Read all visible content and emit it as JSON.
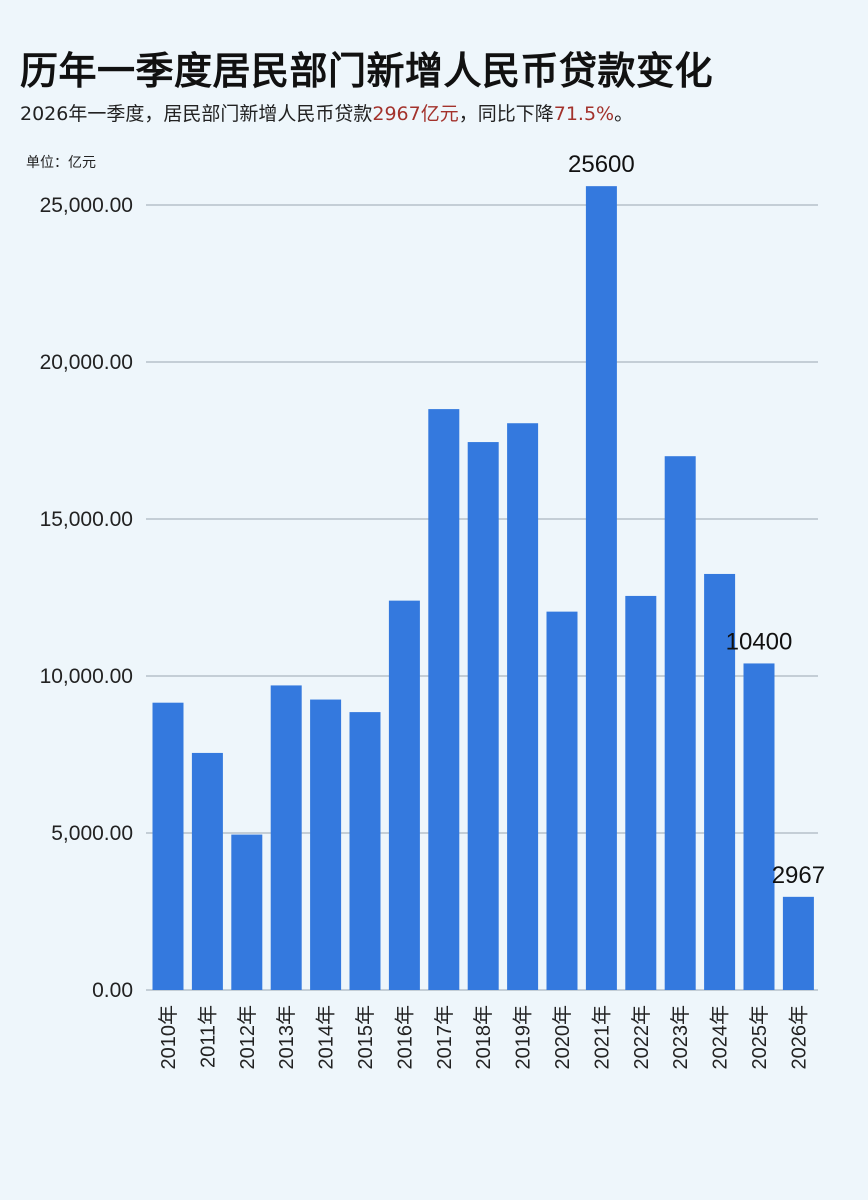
{
  "title": "历年一季度居民部门新增人民币贷款变化",
  "subtitle": {
    "part1": "2026年一季度，居民部门新增人民币贷款",
    "highlight1": "2967亿元",
    "part2": "，同比下降",
    "highlight2": "71.5%",
    "part3": "。"
  },
  "unit_label": "单位：亿元",
  "colors": {
    "bar": "#3479de",
    "grid": "#9aa6b0",
    "highlight": "#a3322c",
    "background": "#eef6fb"
  },
  "chart_data": {
    "type": "bar",
    "title": "历年一季度居民部门新增人民币贷款变化",
    "ylabel": "单位：亿元",
    "xlabel": "",
    "ylim": [
      0,
      25000
    ],
    "grid": true,
    "y_ticks": [
      "0.00",
      "5,000.00",
      "10,000.00",
      "15,000.00",
      "20,000.00",
      "25,000.00"
    ],
    "y_tick_values": [
      0,
      5000,
      10000,
      15000,
      20000,
      25000
    ],
    "categories": [
      "2010年",
      "2011年",
      "2012年",
      "2013年",
      "2014年",
      "2015年",
      "2016年",
      "2017年",
      "2018年",
      "2019年",
      "2020年",
      "2021年",
      "2022年",
      "2023年",
      "2024年",
      "2025年",
      "2026年"
    ],
    "values": [
      9150,
      7550,
      4950,
      9700,
      9250,
      8850,
      12400,
      18500,
      17450,
      18050,
      12050,
      25600,
      12550,
      17000,
      13250,
      10400,
      2967
    ],
    "data_labels": [
      {
        "category": "2021年",
        "text": "25600"
      },
      {
        "category": "2025年",
        "text": "10400"
      },
      {
        "category": "2026年",
        "text": "2967"
      }
    ]
  }
}
